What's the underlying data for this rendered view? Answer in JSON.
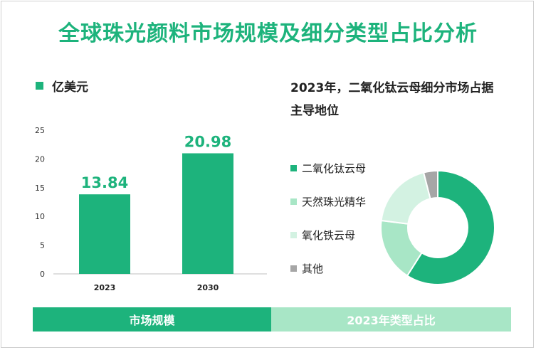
{
  "title": "全球珠光颜料市场规模及细分类型占比分析",
  "chart_data": [
    {
      "type": "bar",
      "legend_label": "亿美元",
      "categories": [
        "2023",
        "2030"
      ],
      "values": [
        13.84,
        20.98
      ],
      "value_labels": [
        "13.84",
        "20.98"
      ],
      "yticks": [
        "0",
        "5",
        "10",
        "15",
        "20",
        "25"
      ],
      "ylim": [
        0,
        25
      ],
      "color": "#1db37c"
    },
    {
      "type": "pie",
      "title": "2023年，二氧化钛云母细分市场占据主导地位",
      "labels": [
        "二氧化钛云母",
        "天然珠光精华",
        "氧化铁云母",
        "其他"
      ],
      "values": [
        59,
        18,
        19,
        4
      ],
      "colors": [
        "#1db37c",
        "#a8e6c6",
        "#d3f2e2",
        "#a6a6a6"
      ],
      "donut": true
    }
  ],
  "footer": {
    "left": "市场规模",
    "right": "2023年类型占比"
  }
}
